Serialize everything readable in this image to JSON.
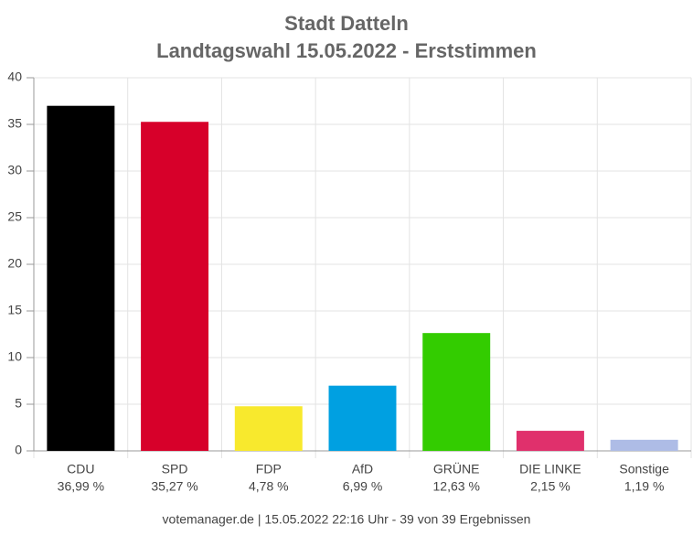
{
  "chart_data": {
    "type": "bar",
    "title": "Stadt Datteln",
    "subtitle": "Landtagswahl 15.05.2022  - Erststimmen",
    "categories": [
      "CDU",
      "SPD",
      "FDP",
      "AfD",
      "GRÜNE",
      "DIE LINKE",
      "Sonstige"
    ],
    "values": [
      36.99,
      35.27,
      4.78,
      6.99,
      12.63,
      2.15,
      1.19
    ],
    "value_labels": [
      "36,99 %",
      "35,27 %",
      "4,78 %",
      "6,99 %",
      "12,63 %",
      "2,15 %",
      "1,19 %"
    ],
    "colors": [
      "#000000",
      "#d7002a",
      "#f8e92d",
      "#00a0e1",
      "#33cc00",
      "#e0306c",
      "#aebce6"
    ],
    "ylim": [
      0,
      40
    ],
    "yticks": [
      0,
      5,
      10,
      15,
      20,
      25,
      30,
      35,
      40
    ],
    "grid": true,
    "source": "votemanager.de | 15.05.2022 22:16 Uhr - 39 von 39 Ergebnissen"
  }
}
